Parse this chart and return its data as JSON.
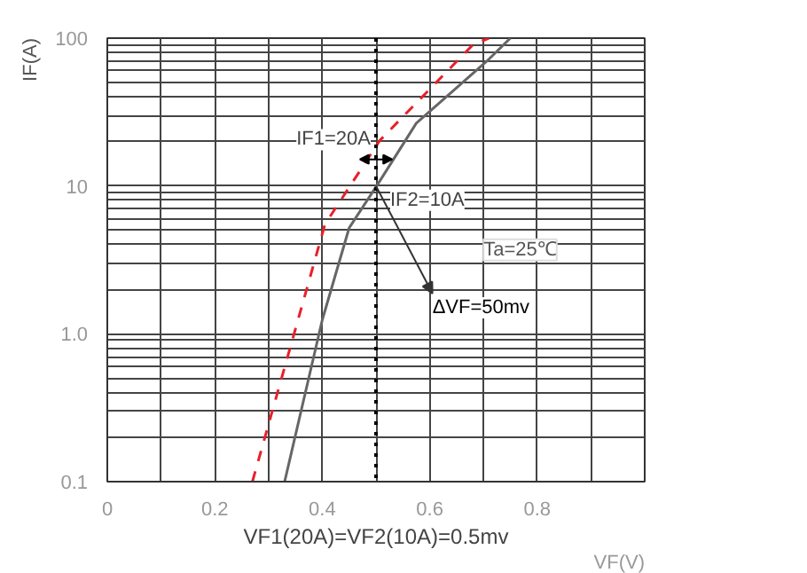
{
  "chart_data": {
    "type": "line",
    "xlabel": "VF(V)",
    "ylabel": "IF(A)",
    "log": "y",
    "grid": true,
    "xlim": [
      0,
      1.0
    ],
    "xticks": [
      0,
      0.2,
      0.4,
      0.6,
      0.8
    ],
    "ylim": [
      0.1,
      100
    ],
    "yticks": [
      {
        "value": 0.1,
        "label": "0.1"
      },
      {
        "value": 1,
        "label": "1.0"
      },
      10,
      100
    ],
    "series": [
      {
        "color": "#e8202a",
        "line_style": "dashed",
        "x": [
          0.27,
          0.405,
          0.507,
          0.68,
          0.71
        ],
        "values": [
          0.1,
          5.5,
          20.3,
          90,
          100
        ]
      },
      {
        "color": "#666666",
        "line_style": "solid",
        "x": [
          0.33,
          0.4,
          0.45,
          0.507,
          0.575,
          0.71,
          0.75
        ],
        "values": [
          0.1,
          1.24,
          5.2,
          10.8,
          26.6,
          72,
          100
        ]
      }
    ],
    "ref_lines": [
      {
        "axis": "x",
        "value": 0.5,
        "label": "VF1(20A)=VF2(10A)=0.5mv",
        "color": "#000000",
        "line_style": "dotted"
      }
    ],
    "annotations": [
      {
        "text": "IF1=20A",
        "x": 0.5,
        "y": 20
      },
      {
        "text": "IF2=10A",
        "x": 0.5,
        "y": 10
      },
      "Ta=25℃",
      "ΔVF=50mv"
    ]
  }
}
